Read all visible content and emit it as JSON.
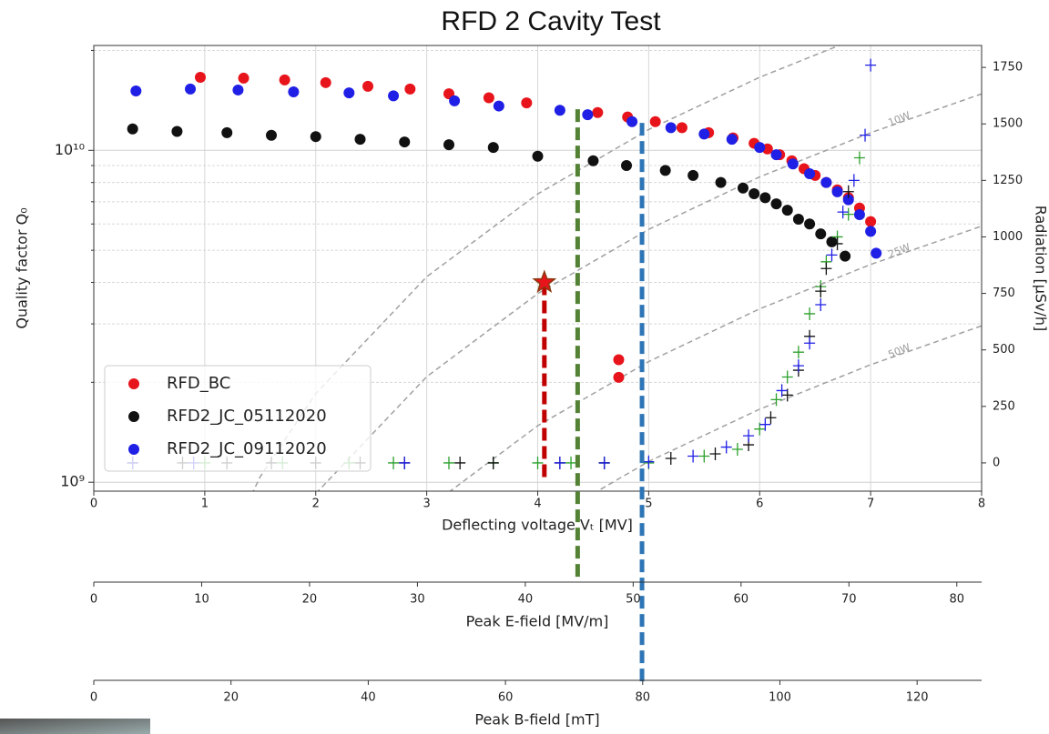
{
  "chart_data": {
    "type": "scatter",
    "title": "RFD 2 Cavity Test",
    "xlabel": "Deflecting voltage Vₜ [MV]",
    "ylabel": "Quality factor Q₀",
    "y2label": "Radiation [μSv/h]",
    "xlim": [
      0,
      8.0
    ],
    "xticks": [
      0,
      1,
      2,
      3,
      4,
      5,
      6,
      7,
      8
    ],
    "log_y": true,
    "ylim": [
      940000000,
      20700000000
    ],
    "yticks": [
      {
        "value": 1000000000,
        "label": "10⁹"
      },
      {
        "value": 10000000000,
        "label": "10¹⁰"
      }
    ],
    "yminorticks": [
      2000000000,
      3000000000,
      4000000000,
      5000000000,
      6000000000,
      7000000000,
      8000000000,
      9000000000,
      20000000000
    ],
    "y2lim": [
      -125,
      1847
    ],
    "y2ticks": [
      0,
      250,
      500,
      750,
      1000,
      1250,
      1500,
      1750
    ],
    "grid": true,
    "legend": "lower left",
    "series": [
      {
        "name": "RFD_BC",
        "color": "#e8141b",
        "marker": "o",
        "x": [
          0.96,
          1.35,
          1.72,
          2.09,
          2.47,
          2.85,
          3.2,
          3.56,
          3.9,
          4.54,
          4.81,
          5.06,
          5.3,
          5.54,
          5.76,
          5.95,
          6.07,
          6.18,
          6.29,
          6.4,
          6.5,
          6.6,
          6.7,
          6.8,
          6.9,
          7.0,
          4.73,
          4.73
        ],
        "values": [
          16600000000,
          16500000000,
          16300000000,
          16000000000,
          15600000000,
          15300000000,
          14800000000,
          14400000000,
          13900000000,
          13000000000,
          12600000000,
          12200000000,
          11700000000,
          11300000000,
          10900000000,
          10500000000,
          10100000000,
          9700000000,
          9300000000,
          8800000000,
          8400000000,
          8000000000,
          7600000000,
          7200000000,
          6700000000,
          6100000000,
          2340000000,
          2070000000
        ]
      },
      {
        "name": "RFD2_JC_05112020",
        "color": "#111111",
        "marker": "o",
        "x": [
          0.35,
          0.75,
          1.2,
          1.6,
          2.0,
          2.4,
          2.8,
          3.2,
          3.6,
          4.0,
          4.5,
          4.8,
          5.15,
          5.4,
          5.65,
          5.85,
          5.95,
          6.05,
          6.15,
          6.25,
          6.35,
          6.45,
          6.55,
          6.65,
          6.77
        ],
        "values": [
          11600000000,
          11400000000,
          11300000000,
          11100000000,
          11000000000,
          10800000000,
          10600000000,
          10400000000,
          10200000000,
          9600000000,
          9300000000,
          9000000000,
          8700000000,
          8400000000,
          8000000000,
          7700000000,
          7400000000,
          7200000000,
          6900000000,
          6600000000,
          6200000000,
          6000000000,
          5600000000,
          5300000000,
          4800000000
        ]
      },
      {
        "name": "RFD2_JC_09112020",
        "color": "#1f1fe6",
        "marker": "o",
        "x": [
          0.38,
          0.87,
          1.3,
          1.8,
          2.3,
          2.7,
          3.25,
          3.65,
          4.2,
          4.45,
          4.85,
          5.2,
          5.5,
          5.75,
          6.0,
          6.15,
          6.3,
          6.45,
          6.6,
          6.7,
          6.8,
          6.9,
          7.0,
          7.05
        ],
        "values": [
          15100000000,
          15300000000,
          15200000000,
          15000000000,
          14900000000,
          14600000000,
          14100000000,
          13600000000,
          13200000000,
          12800000000,
          12200000000,
          11700000000,
          11200000000,
          10800000000,
          10200000000,
          9700000000,
          9100000000,
          8500000000,
          8000000000,
          7500000000,
          7100000000,
          6400000000,
          5700000000,
          4900000000
        ]
      },
      {
        "color": "#2ca02c",
        "marker": "+",
        "axis": "y2",
        "x": [
          0.35,
          1.0,
          1.7,
          2.3,
          2.7,
          3.2,
          3.6,
          4.0,
          4.3,
          4.6,
          5.0,
          5.5,
          5.8,
          6.0,
          6.15,
          6.25,
          6.35,
          6.45,
          6.55,
          6.6,
          6.7,
          6.8,
          6.9
        ],
        "values": [
          0,
          0,
          0,
          0,
          0,
          0,
          0,
          0,
          0,
          0,
          0,
          30,
          60,
          150,
          280,
          380,
          490,
          660,
          780,
          890,
          1000,
          1100,
          1350
        ]
      },
      {
        "color": "#111111",
        "marker": "+",
        "axis": "y2",
        "x": [
          0.35,
          0.8,
          1.2,
          1.6,
          2.0,
          2.4,
          2.8,
          3.3,
          3.6,
          4.2,
          4.6,
          5.2,
          5.6,
          5.9,
          6.1,
          6.25,
          6.35,
          6.45,
          6.55,
          6.6,
          6.7,
          6.8
        ],
        "values": [
          0,
          0,
          0,
          0,
          0,
          0,
          0,
          0,
          0,
          0,
          0,
          20,
          40,
          80,
          200,
          300,
          410,
          560,
          760,
          860,
          970,
          1200
        ]
      },
      {
        "color": "#1f1fe6",
        "marker": "+",
        "axis": "y2",
        "x": [
          0.35,
          0.9,
          2.8,
          4.2,
          4.6,
          5.0,
          5.4,
          5.7,
          5.9,
          6.05,
          6.2,
          6.35,
          6.45,
          6.55,
          6.65,
          6.75,
          6.85,
          6.95,
          7.0
        ],
        "values": [
          0,
          0,
          0,
          0,
          0,
          5,
          30,
          70,
          120,
          170,
          320,
          430,
          530,
          700,
          920,
          1110,
          1250,
          1450,
          1760
        ]
      }
    ],
    "power_curves": [
      {
        "x": [
          1,
          1.5,
          2,
          3,
          4,
          5,
          6,
          7
        ],
        "values": [
          462000000,
          1040000000,
          1850000000,
          4160000000,
          7390000000,
          11550000000,
          16600000000,
          22600000000
        ]
      },
      {
        "label": "10W",
        "x": [
          2,
          3,
          4,
          5,
          6,
          7,
          8
        ],
        "values": [
          924000000,
          2080000000,
          3700000000,
          5780000000,
          8320000000,
          11300000000,
          14800000000
        ]
      },
      {
        "label": "25W",
        "x": [
          3,
          4,
          5,
          6,
          7,
          8
        ],
        "values": [
          832000000,
          1480000000,
          2310000000,
          3330000000,
          4530000000,
          5910000000
        ]
      },
      {
        "label": "50W",
        "x": [
          4,
          5,
          6,
          7,
          8
        ],
        "values": [
          739000000,
          1155000000,
          1660000000,
          2260000000,
          2960000000
        ]
      }
    ],
    "star": {
      "x": 4.06,
      "y": 4000000000,
      "color": "#e8141b"
    },
    "annotation_lines": [
      {
        "x": 4.06,
        "color": "#c00000"
      },
      {
        "x": 4.36,
        "color": "#548235",
        "y_top": 13300000000
      },
      {
        "x": 4.94,
        "color": "#2e75b6",
        "y_top": 12100000000
      }
    ],
    "secondary_axes": [
      {
        "label": "Peak E-field [MV/m]",
        "xlim": [
          0,
          82.3
        ],
        "xticks": [
          0,
          10,
          20,
          30,
          40,
          50,
          60,
          70,
          80
        ]
      },
      {
        "label": "Peak B-field [mT]",
        "xlim": [
          0,
          129.4
        ],
        "xticks": [
          0,
          20,
          40,
          60,
          80,
          100,
          120
        ]
      }
    ]
  }
}
